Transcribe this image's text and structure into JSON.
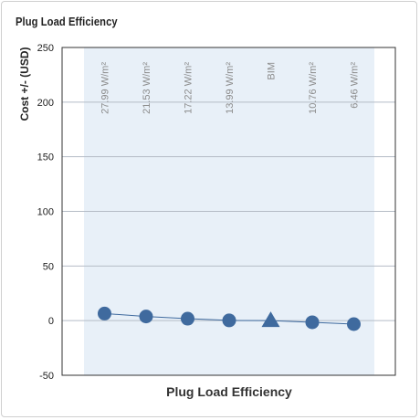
{
  "title": "Plug Load Efficiency",
  "chart_data": {
    "type": "line",
    "title": "Plug Load Efficiency",
    "xlabel": "Plug Load Efficiency",
    "ylabel": "Cost +/- (USD)",
    "ylim": [
      -50,
      250
    ],
    "yticks": [
      250,
      200,
      150,
      100,
      50,
      0,
      -50
    ],
    "categories": [
      "27.99 W/m²",
      "21.53 W/m²",
      "17.22 W/m²",
      "13.99 W/m²",
      "BIM",
      "10.76 W/m²",
      "6.46 W/m²"
    ],
    "series": [
      {
        "values": [
          6.5,
          3.8,
          1.8,
          0.2,
          0,
          -1.5,
          -3.2
        ],
        "markers": [
          "circle",
          "circle",
          "circle",
          "circle",
          "triangle",
          "circle",
          "circle"
        ]
      }
    ],
    "grid": true,
    "colors": {
      "marker": "#3f6a9e",
      "line": "#3f6a9e",
      "band": "#e8f0f8",
      "grid": "#b5bcc6",
      "category_label": "#8c8c8c"
    }
  }
}
